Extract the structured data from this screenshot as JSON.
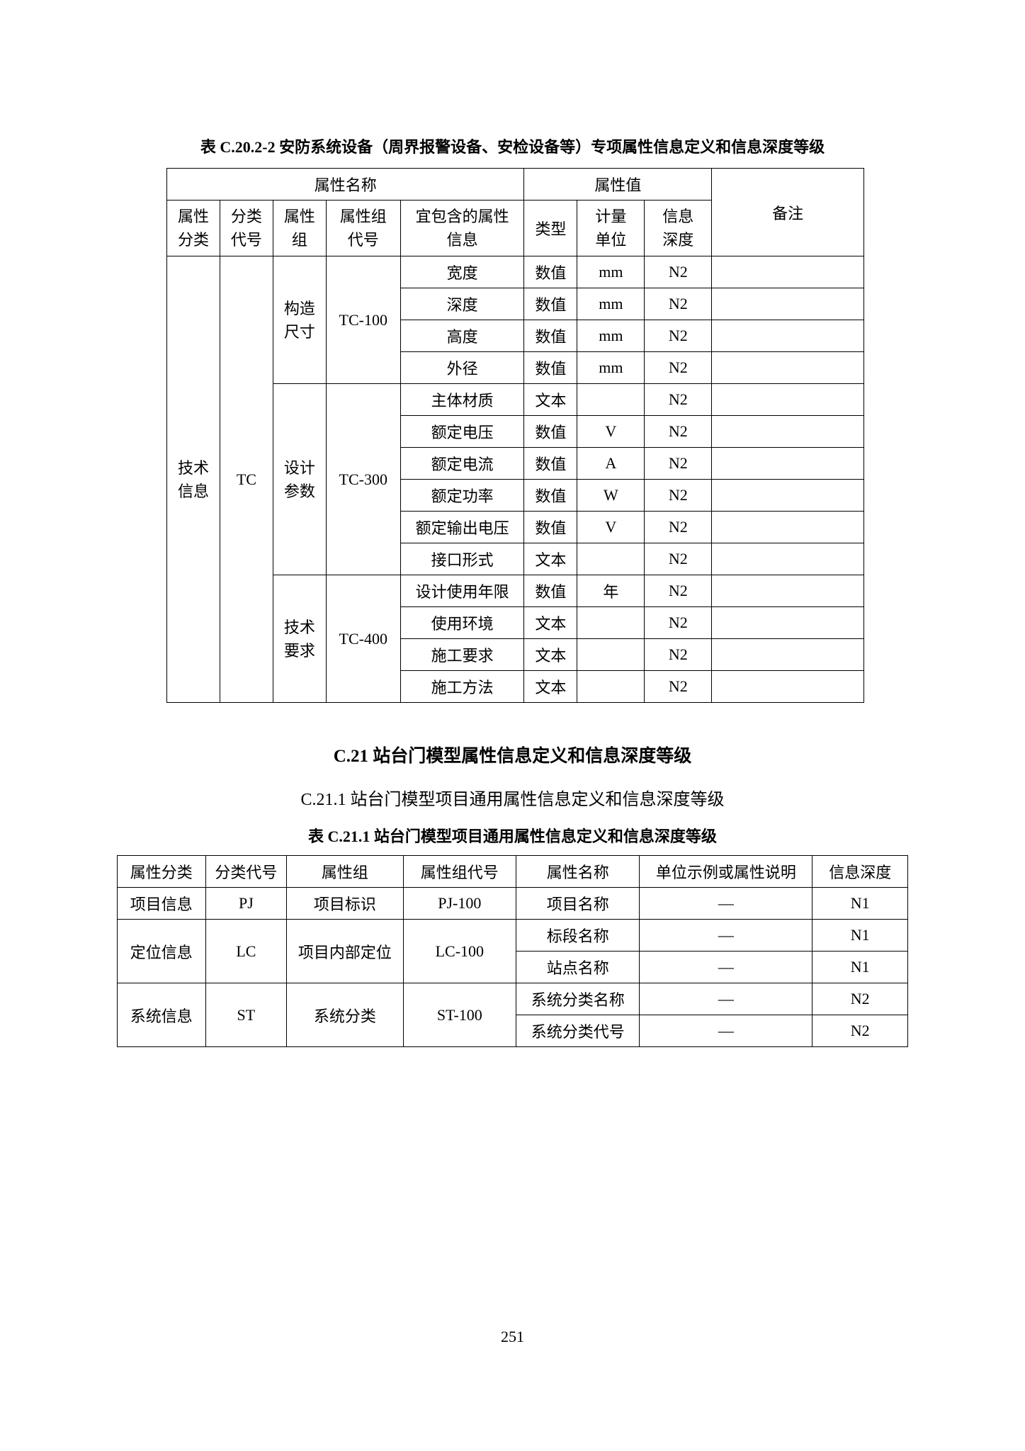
{
  "table1": {
    "caption": "表 C.20.2-2   安防系统设备（周界报警设备、安检设备等）专项属性信息定义和信息深度等级",
    "header_attr_name": "属性名称",
    "header_attr_value": "属性值",
    "header_remark": "备注",
    "header_attr_class": "属性\n分类",
    "header_class_code": "分类\n代号",
    "header_attr_group": "属性\n组",
    "header_group_code": "属性组\n代号",
    "header_included": "宜包含的属性\n信息",
    "header_type": "类型",
    "header_unit": "计量\n单位",
    "header_depth": "信息\n深度",
    "attr_class": "技术\n信息",
    "class_code": "TC",
    "groups": [
      {
        "group": "构造\n尺寸",
        "code": "TC-100",
        "rows": [
          {
            "included": "宽度",
            "type": "数值",
            "unit": "mm",
            "depth": "N2",
            "remark": ""
          },
          {
            "included": "深度",
            "type": "数值",
            "unit": "mm",
            "depth": "N2",
            "remark": ""
          },
          {
            "included": "高度",
            "type": "数值",
            "unit": "mm",
            "depth": "N2",
            "remark": ""
          },
          {
            "included": "外径",
            "type": "数值",
            "unit": "mm",
            "depth": "N2",
            "remark": ""
          }
        ]
      },
      {
        "group": "设计\n参数",
        "code": "TC-300",
        "rows": [
          {
            "included": "主体材质",
            "type": "文本",
            "unit": "",
            "depth": "N2",
            "remark": ""
          },
          {
            "included": "额定电压",
            "type": "数值",
            "unit": "V",
            "depth": "N2",
            "remark": ""
          },
          {
            "included": "额定电流",
            "type": "数值",
            "unit": "A",
            "depth": "N2",
            "remark": ""
          },
          {
            "included": "额定功率",
            "type": "数值",
            "unit": "W",
            "depth": "N2",
            "remark": ""
          },
          {
            "included": "额定输出电压",
            "type": "数值",
            "unit": "V",
            "depth": "N2",
            "remark": ""
          },
          {
            "included": "接口形式",
            "type": "文本",
            "unit": "",
            "depth": "N2",
            "remark": ""
          }
        ]
      },
      {
        "group": "技术\n要求",
        "code": "TC-400",
        "rows": [
          {
            "included": "设计使用年限",
            "type": "数值",
            "unit": "年",
            "depth": "N2",
            "remark": ""
          },
          {
            "included": "使用环境",
            "type": "文本",
            "unit": "",
            "depth": "N2",
            "remark": ""
          },
          {
            "included": "施工要求",
            "type": "文本",
            "unit": "",
            "depth": "N2",
            "remark": ""
          },
          {
            "included": "施工方法",
            "type": "文本",
            "unit": "",
            "depth": "N2",
            "remark": ""
          }
        ]
      }
    ]
  },
  "section": {
    "title": "C.21   站台门模型属性信息定义和信息深度等级",
    "sub": "C.21.1   站台门模型项目通用属性信息定义和信息深度等级"
  },
  "table2": {
    "caption": "表 C.21.1   站台门模型项目通用属性信息定义和信息深度等级",
    "header_attr_class": "属性分类",
    "header_class_code": "分类代号",
    "header_attr_group": "属性组",
    "header_group_code": "属性组代号",
    "header_attr_name": "属性名称",
    "header_unit_desc": "单位示例或属性说明",
    "header_depth": "信息深度",
    "groups": [
      {
        "attr_class": "项目信息",
        "class_code": "PJ",
        "attr_group": "项目标识",
        "group_code": "PJ-100",
        "rows": [
          {
            "name": "项目名称",
            "unit": "—",
            "depth": "N1"
          }
        ]
      },
      {
        "attr_class": "定位信息",
        "class_code": "LC",
        "attr_group": "项目内部定位",
        "group_code": "LC-100",
        "rows": [
          {
            "name": "标段名称",
            "unit": "—",
            "depth": "N1"
          },
          {
            "name": "站点名称",
            "unit": "—",
            "depth": "N1"
          }
        ]
      },
      {
        "attr_class": "系统信息",
        "class_code": "ST",
        "attr_group": "系统分类",
        "group_code": "ST-100",
        "rows": [
          {
            "name": "系统分类名称",
            "unit": "—",
            "depth": "N2"
          },
          {
            "name": "系统分类代号",
            "unit": "—",
            "depth": "N2"
          }
        ]
      }
    ]
  },
  "page_number": "251",
  "colors": {
    "text": "#000000",
    "background": "#ffffff",
    "border": "#000000"
  }
}
